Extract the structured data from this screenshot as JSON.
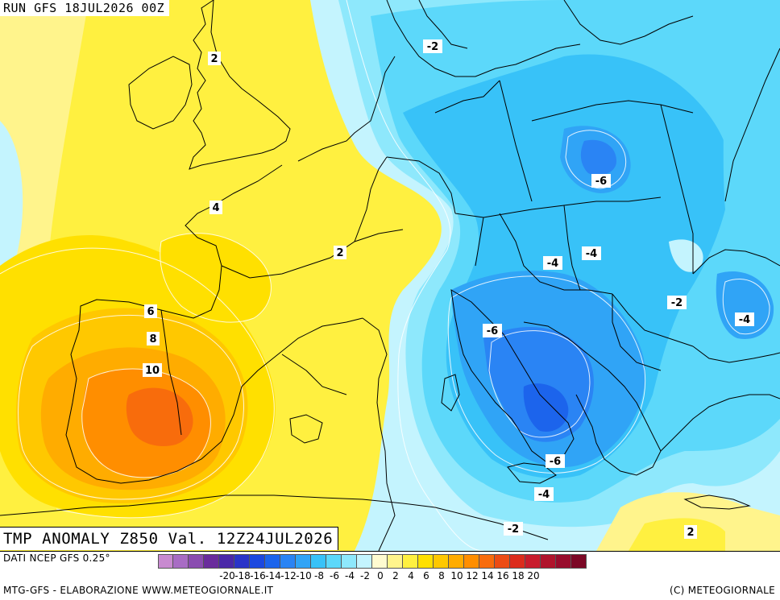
{
  "header": {
    "run": "RUN GFS 18JUL2026 00Z"
  },
  "footer": {
    "variable_valid": "TMP ANOMALY Z850 Val. 12Z24JUL2026",
    "source": "DATI NCEP GFS 0.25°",
    "credit_left": "MTG-GFS - ELABORAZIONE WWW.METEOGIORNALE.IT",
    "credit_right": "(C) METEOGIORNALE"
  },
  "legend": {
    "colors": [
      "#c88ad0",
      "#a86cc4",
      "#8a4cb0",
      "#6a2c9c",
      "#4a28a8",
      "#2a34c8",
      "#1c48e0",
      "#1c64ec",
      "#2a84f4",
      "#30a4f6",
      "#38c2f8",
      "#5cd8fa",
      "#8ee8fc",
      "#c4f4fe",
      "#fffbd0",
      "#fff48c",
      "#fff040",
      "#ffe000",
      "#ffc800",
      "#ffac00",
      "#ff8e00",
      "#f86c0c",
      "#ec4c14",
      "#dc2c1c",
      "#c81c2c",
      "#b0142c",
      "#980c2c",
      "#7c0826"
    ],
    "ticks": [
      "-20",
      "-18",
      "-16",
      "-14",
      "-12",
      "-10",
      "-8",
      "-6",
      "-4",
      "-2",
      "0",
      "2",
      "4",
      "6",
      "8",
      "10",
      "12",
      "14",
      "16",
      "18",
      "20"
    ]
  },
  "contour_labels": [
    {
      "text": "2",
      "color": "#000"
    },
    {
      "text": "4",
      "color": "#000"
    },
    {
      "text": "2",
      "color": "#000"
    },
    {
      "text": "6",
      "color": "#000"
    },
    {
      "text": "8",
      "color": "#000"
    },
    {
      "text": "10",
      "color": "#000"
    },
    {
      "text": "-2",
      "color": "#000"
    },
    {
      "text": "-6",
      "color": "#000"
    },
    {
      "text": "-4",
      "color": "#000"
    },
    {
      "text": "-4",
      "color": "#000"
    },
    {
      "text": "-2",
      "color": "#000"
    },
    {
      "text": "-4",
      "color": "#000"
    },
    {
      "text": "-6",
      "color": "#000"
    },
    {
      "text": "-6",
      "color": "#000"
    },
    {
      "text": "-4",
      "color": "#000"
    },
    {
      "text": "-2",
      "color": "#000"
    },
    {
      "text": "2",
      "color": "#000"
    }
  ]
}
